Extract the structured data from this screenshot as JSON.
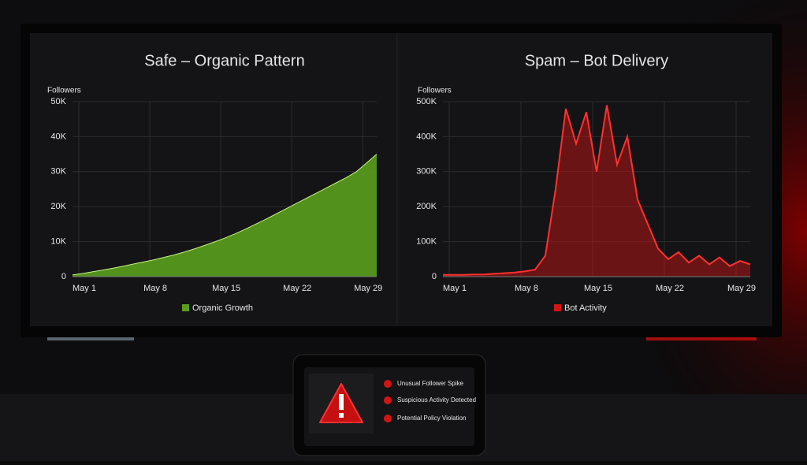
{
  "chart_data": [
    {
      "type": "area",
      "title": "Safe – Organic Pattern",
      "y_label": "Followers",
      "categories": [
        "May 1",
        null,
        null,
        null,
        null,
        null,
        null,
        "May 8",
        null,
        null,
        null,
        null,
        null,
        null,
        "May 15",
        null,
        null,
        null,
        null,
        null,
        null,
        "May 22",
        null,
        null,
        null,
        null,
        null,
        null,
        "May 29",
        null,
        null
      ],
      "series": [
        {
          "name": "Organic Growth",
          "color": "#5a9e1e",
          "values": [
            500,
            900,
            1400,
            1900,
            2400,
            3000,
            3600,
            4200,
            4800,
            5500,
            6200,
            7000,
            7900,
            8900,
            9900,
            11000,
            12200,
            13500,
            14900,
            16300,
            17800,
            19300,
            20800,
            22300,
            23800,
            25300,
            26800,
            28300,
            30000,
            32500,
            35000
          ]
        }
      ],
      "ylim": [
        0,
        50000
      ],
      "yticks": [
        0,
        {
          "value": 10000,
          "label": "10K"
        },
        {
          "value": 20000,
          "label": "20K"
        },
        {
          "value": 30000,
          "label": "30K"
        },
        {
          "value": 40000,
          "label": "40K"
        },
        {
          "value": 50000,
          "label": "50K"
        }
      ],
      "grid": true
    },
    {
      "type": "area",
      "title": "Spam – Bot Delivery",
      "y_label": "Followers",
      "categories": [
        "May 1",
        null,
        null,
        null,
        null,
        null,
        null,
        "May 8",
        null,
        null,
        null,
        null,
        null,
        null,
        "May 15",
        null,
        null,
        null,
        null,
        null,
        null,
        "May 22",
        null,
        null,
        null,
        null,
        null,
        null,
        "May 29",
        null,
        null
      ],
      "series": [
        {
          "name": "Bot Activity",
          "color": "#d41414",
          "values": [
            5000,
            5000,
            5000,
            6000,
            6000,
            8000,
            10000,
            12000,
            15000,
            20000,
            60000,
            250000,
            480000,
            380000,
            470000,
            300000,
            490000,
            320000,
            400000,
            220000,
            150000,
            80000,
            50000,
            70000,
            40000,
            60000,
            35000,
            55000,
            30000,
            45000,
            35000
          ]
        }
      ],
      "ylim": [
        0,
        500000
      ],
      "yticks": [
        0,
        {
          "value": 100000,
          "label": "100K"
        },
        {
          "value": 200000,
          "label": "200K"
        },
        {
          "value": 300000,
          "label": "300K"
        },
        {
          "value": 400000,
          "label": "400K"
        },
        {
          "value": 500000,
          "label": "500K"
        }
      ],
      "grid": true
    }
  ],
  "alerts": [
    "Unusual Follower Spike",
    "Suspicious Activity Detected",
    "Potential Policy Violation"
  ]
}
